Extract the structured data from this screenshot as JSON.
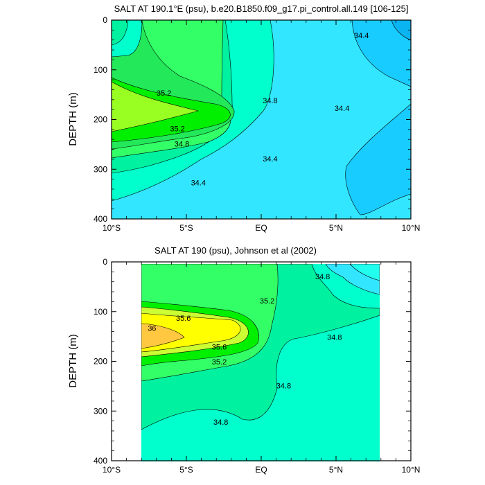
{
  "chart_data": [
    {
      "type": "contour",
      "title": "SALT AT 190.1°E (psu), b.e20.B1850.f09_g17.pi_control.all.149 [106-125]",
      "xlabel": "",
      "ylabel": "DEPTH (m)",
      "x_ticks": [
        "10°S",
        "5°S",
        "EQ",
        "5°N",
        "10°N"
      ],
      "x_tick_values": [
        -10,
        -5,
        0,
        5,
        10
      ],
      "xlim": [
        -10,
        10
      ],
      "y_ticks": [
        "0",
        "100",
        "200",
        "300",
        "400"
      ],
      "y_tick_values": [
        0,
        100,
        200,
        300,
        400
      ],
      "ylim": [
        400,
        0
      ],
      "data_extent_lat": [
        -10,
        10
      ],
      "contour_labels": [
        {
          "text": "35.2",
          "lat": -6.5,
          "depth": 146
        },
        {
          "text": "35.2",
          "lat": -5.6,
          "depth": 218
        },
        {
          "text": "34.8",
          "lat": -5.3,
          "depth": 249
        },
        {
          "text": "34.8",
          "lat": 0.6,
          "depth": 162
        },
        {
          "text": "34.4",
          "lat": -4.2,
          "depth": 327
        },
        {
          "text": "34.4",
          "lat": 0.6,
          "depth": 279
        },
        {
          "text": "34.4",
          "lat": 5.4,
          "depth": 177
        },
        {
          "text": "34.4",
          "lat": 6.7,
          "depth": 31
        }
      ]
    },
    {
      "type": "contour",
      "title": "SALT AT 190 (psu), Johnson et al (2002)",
      "xlabel": "",
      "ylabel": "DEPTH (m)",
      "x_ticks": [
        "10°S",
        "5°S",
        "EQ",
        "5°N",
        "10°N"
      ],
      "x_tick_values": [
        -10,
        -5,
        0,
        5,
        10
      ],
      "xlim": [
        -10,
        10
      ],
      "y_ticks": [
        "0",
        "100",
        "200",
        "300",
        "400"
      ],
      "y_tick_values": [
        0,
        100,
        200,
        300,
        400
      ],
      "ylim": [
        400,
        0
      ],
      "data_extent_lat": [
        -8,
        8
      ],
      "contour_labels": [
        {
          "text": "36",
          "lat": -7.3,
          "depth": 133
        },
        {
          "text": "35.6",
          "lat": -5.2,
          "depth": 113
        },
        {
          "text": "35.6",
          "lat": -2.8,
          "depth": 171
        },
        {
          "text": "35.2",
          "lat": -2.8,
          "depth": 201
        },
        {
          "text": "35.2",
          "lat": 0.4,
          "depth": 78
        },
        {
          "text": "34.8",
          "lat": 4.1,
          "depth": 29
        },
        {
          "text": "34.8",
          "lat": 4.9,
          "depth": 151
        },
        {
          "text": "34.8",
          "lat": 1.5,
          "depth": 249
        },
        {
          "text": "34.8",
          "lat": -2.7,
          "depth": 322
        }
      ]
    }
  ]
}
